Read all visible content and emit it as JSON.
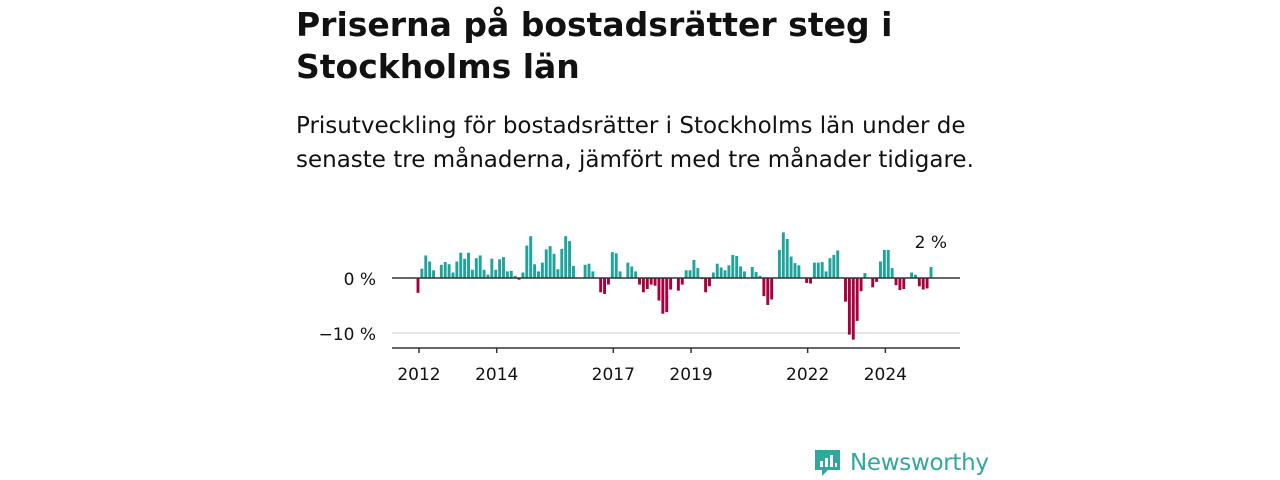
{
  "header": {
    "title": "Priserna på bostadsrätter steg i Stockholms län",
    "subtitle": "Prisutveckling för bostadsrätter i Stockholms län under de senaste tre månaderna, jämfört med tre månader tidigare."
  },
  "chart_data": {
    "type": "bar",
    "ylim": [
      -13,
      9
    ],
    "y_ticks": [
      {
        "value": 0,
        "label": "0 %"
      },
      {
        "value": -10,
        "label": "−10 %"
      }
    ],
    "x_ticks": [
      "2012",
      "2014",
      "2017",
      "2019",
      "2022",
      "2024"
    ],
    "grid": true,
    "colors": {
      "positive": "#20a39a",
      "negative": "#a8003f"
    },
    "annotation": {
      "label": "2 %",
      "value": 2
    },
    "values": [
      -2.7,
      1.7,
      4.1,
      3.0,
      1.4,
      0,
      2.4,
      2.9,
      2.5,
      1.0,
      3.0,
      4.6,
      3.5,
      4.6,
      1.5,
      3.6,
      4.1,
      1.5,
      0.6,
      3.5,
      1.5,
      3.4,
      3.8,
      1.2,
      1.3,
      0.4,
      -0.3,
      1.0,
      5.9,
      7.6,
      2.5,
      1.2,
      2.8,
      5.2,
      5.8,
      4.4,
      1.6,
      5.3,
      7.6,
      6.7,
      2.2,
      0,
      0,
      2.4,
      2.6,
      1.2,
      0,
      -2.6,
      -2.9,
      -1.2,
      4.7,
      4.5,
      1.2,
      0,
      2.8,
      2.1,
      1.2,
      -1.2,
      -2.6,
      -2.0,
      -1.2,
      -1.4,
      -4.1,
      -6.5,
      -6.2,
      -2.1,
      0,
      -2.3,
      -1.2,
      1.4,
      1.4,
      3.3,
      1.8,
      -0.2,
      -2.6,
      -1.5,
      1.0,
      2.6,
      1.9,
      1.4,
      2.3,
      4.2,
      4.0,
      2.1,
      1.2,
      0,
      2.0,
      1.1,
      0.4,
      -3.3,
      -4.9,
      -3.9,
      0,
      5.1,
      8.3,
      7.1,
      3.9,
      2.7,
      2.3,
      0,
      -0.9,
      -1.0,
      2.8,
      2.8,
      2.9,
      1.2,
      3.6,
      4.2,
      5.0,
      0,
      -4.3,
      -10.3,
      -11.2,
      -7.8,
      -2.4,
      0.9,
      0,
      -1.7,
      -0.7,
      3.0,
      5.1,
      5.1,
      1.8,
      -1.3,
      -2.2,
      -2.0,
      0,
      1.0,
      0.6,
      -1.5,
      -2.1,
      -1.9,
      2.0
    ]
  },
  "branding": {
    "logo_text": "Newsworthy"
  }
}
